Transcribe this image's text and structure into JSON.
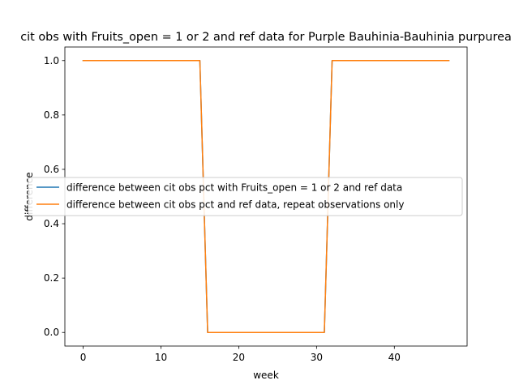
{
  "chart_data": {
    "type": "line",
    "title": "cit obs with Fruits_open = 1 or 2 and ref data for Purple Bauhinia-Bauhinia purpurea",
    "xlabel": "week",
    "ylabel": "difference",
    "xlim": [
      -2.35,
      49.35
    ],
    "ylim": [
      -0.05,
      1.05
    ],
    "xticks": [
      0,
      10,
      20,
      30,
      40
    ],
    "yticks": [
      0.0,
      0.2,
      0.4,
      0.6,
      0.8,
      1.0
    ],
    "grid": false,
    "legend_position": "center-left",
    "x": [
      0,
      1,
      2,
      3,
      4,
      5,
      6,
      7,
      8,
      9,
      10,
      11,
      12,
      13,
      14,
      15,
      16,
      17,
      18,
      19,
      20,
      21,
      22,
      23,
      24,
      25,
      26,
      27,
      28,
      29,
      30,
      31,
      32,
      33,
      34,
      35,
      36,
      37,
      38,
      39,
      40,
      41,
      42,
      43,
      44,
      45,
      46,
      47
    ],
    "series": [
      {
        "name": "difference between cit obs pct with Fruits_open = 1 or 2 and ref data",
        "color": "#1f77b4",
        "values": [
          1,
          1,
          1,
          1,
          1,
          1,
          1,
          1,
          1,
          1,
          1,
          1,
          1,
          1,
          1,
          1,
          0,
          0,
          0,
          0,
          0,
          0,
          0,
          0,
          0,
          0,
          0,
          0,
          0,
          0,
          0,
          0,
          1,
          1,
          1,
          1,
          1,
          1,
          1,
          1,
          1,
          1,
          1,
          1,
          1,
          1,
          1,
          1
        ]
      },
      {
        "name": "difference between cit obs pct and ref data, repeat observations only",
        "color": "#ff7f0e",
        "values": [
          1,
          1,
          1,
          1,
          1,
          1,
          1,
          1,
          1,
          1,
          1,
          1,
          1,
          1,
          1,
          1,
          0,
          0,
          0,
          0,
          0,
          0,
          0,
          0,
          0,
          0,
          0,
          0,
          0,
          0,
          0,
          0,
          1,
          1,
          1,
          1,
          1,
          1,
          1,
          1,
          1,
          1,
          1,
          1,
          1,
          1,
          1,
          1
        ]
      }
    ]
  }
}
